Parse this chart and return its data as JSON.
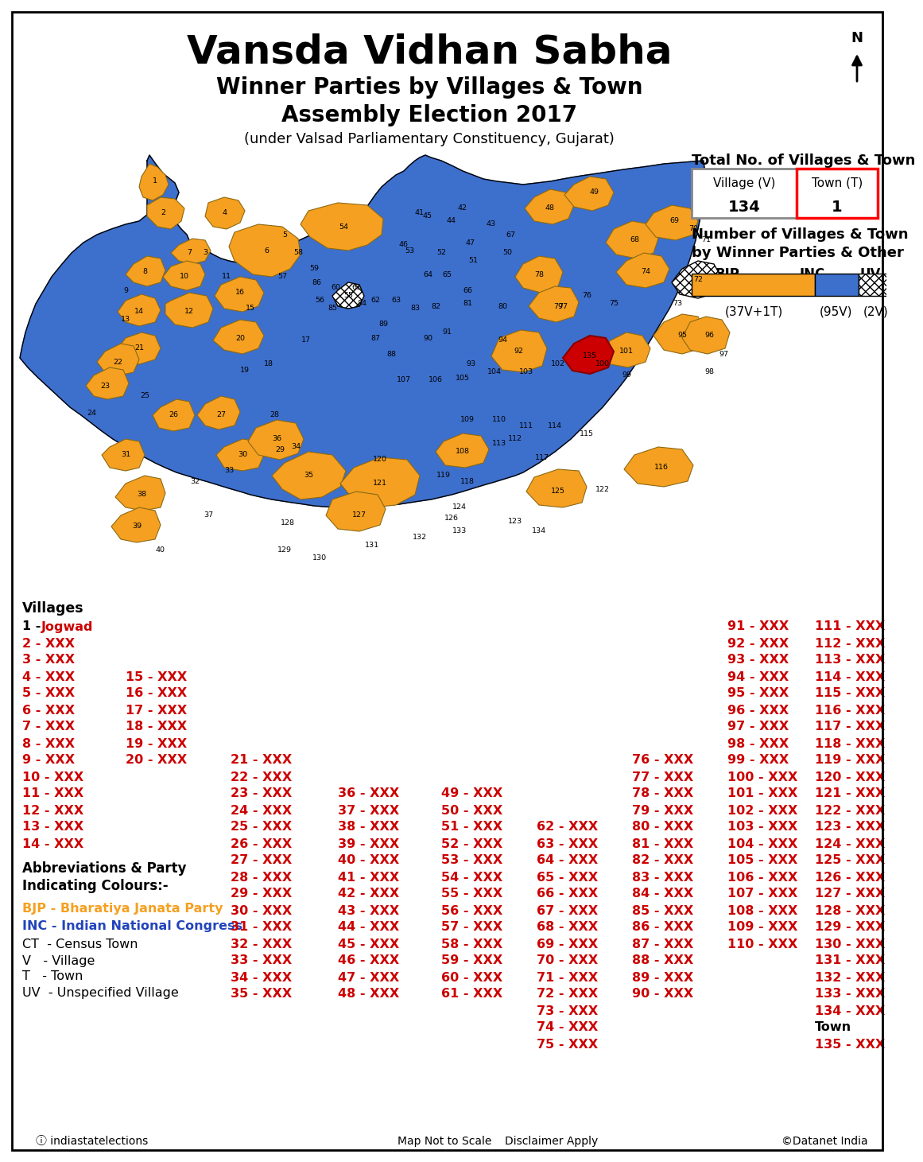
{
  "title": "Vansda Vidhan Sabha",
  "subtitle1": "Winner Parties by Villages & Town",
  "subtitle2": "Assembly Election 2017",
  "subtitle3": "(under Valsad Parliamentary Constituency, Gujarat)",
  "total_label": "Total No. of Villages & Town",
  "village_label": "Village (V)",
  "village_count": "134",
  "town_label": "Town (T)",
  "town_count": "1",
  "bjp_label": "BJP",
  "inc_label": "INC",
  "uv_label": "UV",
  "bjp_count": "(37V+1T)",
  "inc_count": "(95V)",
  "uv_count": "(2V)",
  "bjp_color": "#F5A020",
  "inc_color": "#3D6FCC",
  "town135_color": "#CC0000",
  "uv_hatch_color": "#CCCCCC",
  "background_color": "#FFFFFF",
  "border_color": "#8B6914",
  "note1": "Map Not to Scale",
  "note2": "Disclaimer Apply",
  "credit": "©Datanet India",
  "source": "ⓘ indiastatelections"
}
